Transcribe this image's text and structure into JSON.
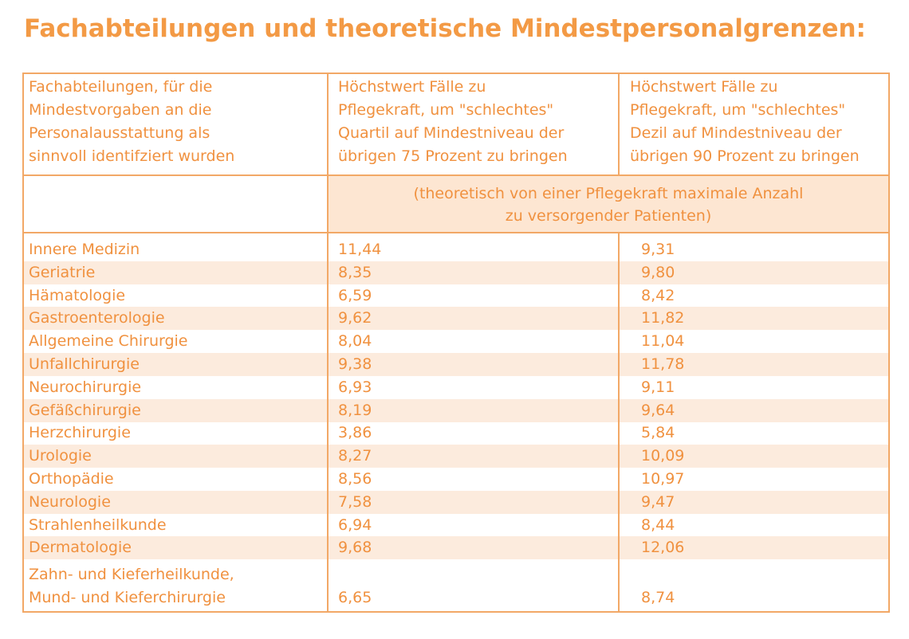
{
  "title": "Fachabteilungen und theoretische Mindestpersonalgrenzen:",
  "header": {
    "col1": [
      "Fachabteilungen, für die",
      "Mindestvorgaben an die",
      "Personalausstattung als",
      "sinnvoll identifziert wurden"
    ],
    "col2": [
      "Höchstwert Fälle zu",
      "Pflegekraft, um \"schlechtes\"",
      "Quartil auf Mindestniveau der",
      "übrigen 75 Prozent zu bringen"
    ],
    "col3": [
      "Höchstwert Fälle zu",
      "Pflegekraft, um \"schlechtes\"",
      "Dezil auf Mindestniveau der",
      "übrigen 90 Prozent zu bringen"
    ],
    "unit": [
      "(theoretisch von einer Pflegekraft maximale Anzahl",
      "zu versorgender Patienten)"
    ]
  },
  "rows": [
    {
      "name": "Innere Medizin",
      "v75": "11,44",
      "v90": "9,31"
    },
    {
      "name": "Geriatrie",
      "v75": "8,35",
      "v90": "9,80"
    },
    {
      "name": "Hämatologie",
      "v75": "6,59",
      "v90": "8,42"
    },
    {
      "name": "Gastroenterologie",
      "v75": "9,62",
      "v90": "11,82"
    },
    {
      "name": "Allgemeine Chirurgie",
      "v75": "8,04",
      "v90": "11,04"
    },
    {
      "name": "Unfallchirurgie",
      "v75": "9,38",
      "v90": "11,78"
    },
    {
      "name": "Neurochirurgie",
      "v75": "6,93",
      "v90": "9,11"
    },
    {
      "name": "Gefäßchirurgie",
      "v75": "8,19",
      "v90": "9,64"
    },
    {
      "name": "Herzchirurgie",
      "v75": "3,86",
      "v90": "5,84"
    },
    {
      "name": "Urologie",
      "v75": "8,27",
      "v90": "10,09"
    },
    {
      "name": "Orthopädie",
      "v75": "8,56",
      "v90": "10,97"
    },
    {
      "name": "Neurologie",
      "v75": "7,58",
      "v90": "9,47"
    },
    {
      "name": "Strahlenheilkunde",
      "v75": "6,94",
      "v90": "8,44"
    },
    {
      "name": "Dermatologie",
      "v75": "9,68",
      "v90": "12,06"
    }
  ],
  "last_row": {
    "name_line1": "Zahn- und Kieferheilkunde,",
    "name_line2": "Mund- und Kieferchirurgie",
    "v75": "6,65",
    "v90": "8,74"
  }
}
